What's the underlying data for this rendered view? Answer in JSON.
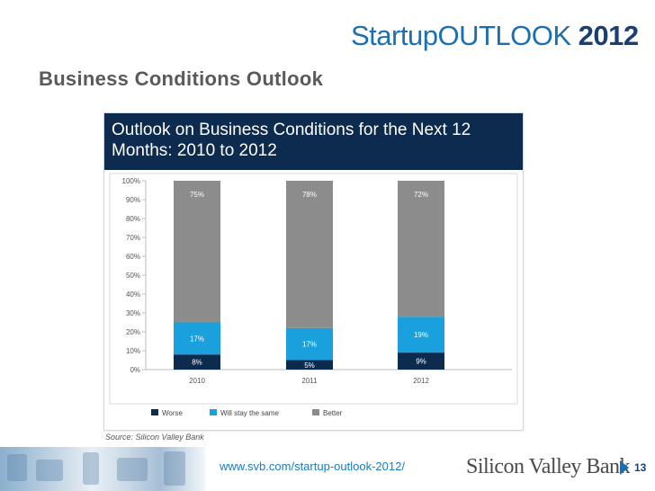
{
  "brand": {
    "part1": "Startup",
    "part2": "OUTLOOK",
    "part3": "2012"
  },
  "slide_title": "Business Conditions Outlook",
  "source": "Source: Silicon Valley Bank",
  "footer": {
    "url": "www.svb.com/startup-outlook-2012/",
    "logo_text": "Silicon Valley Bank",
    "page_number": "13"
  },
  "colors": {
    "worse": "#0d2a4f",
    "same": "#1aa0dd",
    "better": "#8c8c8c",
    "header_bg": "#0d2a4f",
    "accent": "#1a6fb3"
  },
  "chart_data": {
    "type": "bar",
    "stacked": true,
    "title": "Outlook on Business Conditions for the Next 12 Months: 2010 to 2012",
    "title_lines": [
      "Outlook on Business Conditions for the Next 12",
      "Months: 2010 to 2012"
    ],
    "categories": [
      "2010",
      "2011",
      "2012"
    ],
    "series": [
      {
        "name": "Worse",
        "values": [
          8,
          5,
          9
        ],
        "labels": [
          "8%",
          "5%",
          "9%"
        ]
      },
      {
        "name": "Will stay the same",
        "values": [
          17,
          17,
          19
        ],
        "labels": [
          "17%",
          "17%",
          "19%"
        ]
      },
      {
        "name": "Better",
        "values": [
          75,
          78,
          72
        ],
        "labels": [
          "75%",
          "78%",
          "72%"
        ]
      }
    ],
    "yticks": [
      "0%",
      "10%",
      "20%",
      "30%",
      "40%",
      "50%",
      "60%",
      "70%",
      "80%",
      "90%",
      "100%"
    ],
    "ylim": [
      0,
      100
    ],
    "legend_position": "bottom",
    "grid": false
  }
}
